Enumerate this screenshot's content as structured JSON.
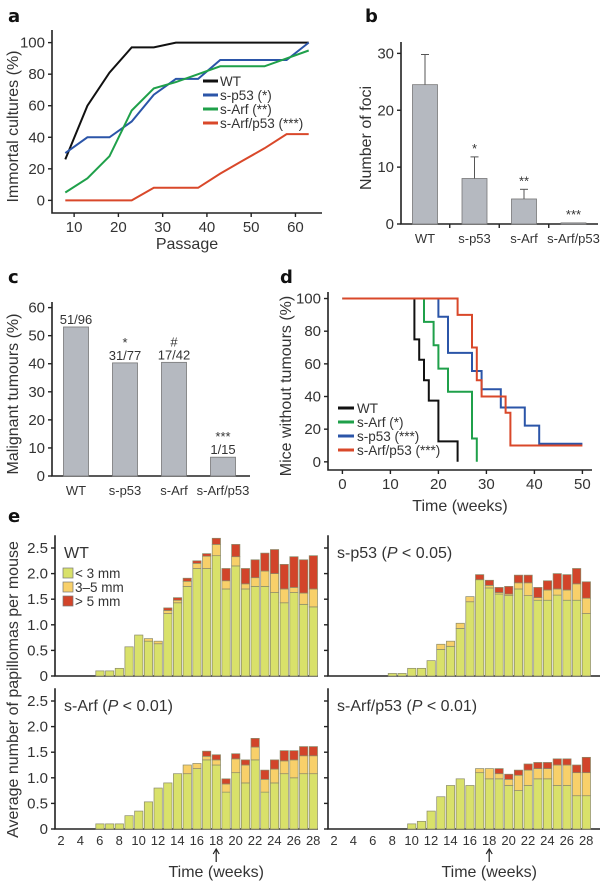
{
  "figure": {
    "panel_letters": [
      "a",
      "b",
      "c",
      "d",
      "e"
    ]
  },
  "chart_data": [
    {
      "id": "a",
      "type": "line",
      "xlabel": "Passage",
      "ylabel": "Immortal cultures (%)",
      "xlim": [
        5,
        66
      ],
      "ylim": [
        -8,
        108
      ],
      "xticks": [
        10,
        20,
        30,
        40,
        50,
        60
      ],
      "yticks": [
        0,
        20,
        40,
        60,
        80,
        100
      ],
      "legend_position": "center-right",
      "series": [
        {
          "name": "WT",
          "color": "#111111",
          "x": [
            8,
            13,
            18,
            23,
            28,
            33,
            38,
            43,
            48,
            53,
            58,
            63
          ],
          "y": [
            26,
            60,
            81,
            97,
            97,
            100,
            100,
            100,
            100,
            100,
            100,
            100
          ]
        },
        {
          "name": "s-p53 (*)",
          "color": "#2b55a8",
          "x": [
            8,
            13,
            18,
            23,
            28,
            33,
            38,
            43,
            48,
            53,
            58,
            63
          ],
          "y": [
            30,
            40,
            40,
            50,
            67,
            77,
            77,
            89,
            89,
            89,
            89,
            100
          ]
        },
        {
          "name": "s-Arf (**)",
          "color": "#1fa04a",
          "x": [
            8,
            13,
            18,
            23,
            28,
            33,
            38,
            43,
            48,
            53,
            58,
            63
          ],
          "y": [
            5,
            14,
            28,
            57,
            71,
            75,
            80,
            85,
            85,
            85,
            90,
            95
          ]
        },
        {
          "name": "s-Arf/p53 (***)",
          "color": "#d9482a",
          "x": [
            8,
            13,
            18,
            23,
            28,
            33,
            38,
            43,
            48,
            53,
            58,
            63
          ],
          "y": [
            0,
            0,
            0,
            0,
            8,
            8,
            8,
            17,
            25,
            33,
            42,
            42
          ]
        }
      ]
    },
    {
      "id": "b",
      "type": "bar",
      "ylabel": "Number of foci",
      "categories": [
        "WT",
        "s-p53",
        "s-Arf",
        "s-Arf/p53"
      ],
      "values": [
        24.5,
        8.0,
        4.4,
        0.2
      ],
      "errors": [
        5.3,
        3.8,
        1.7,
        0.1
      ],
      "annotations": [
        "",
        "*",
        "**",
        "***"
      ],
      "ylim": [
        0,
        32
      ],
      "yticks": [
        0,
        10,
        20,
        30
      ],
      "bar_color": "#b5b9c0"
    },
    {
      "id": "c",
      "type": "bar",
      "ylabel": "Malignant tumours (%)",
      "categories": [
        "WT",
        "s-p53",
        "s-Arf",
        "s-Arf/p53"
      ],
      "values": [
        53.1,
        40.3,
        40.5,
        6.7
      ],
      "labels": [
        "51/96",
        "31/77",
        "17/42",
        "1/15"
      ],
      "annotations": [
        "",
        "*",
        "#",
        "***"
      ],
      "ylim": [
        0,
        62
      ],
      "yticks": [
        0,
        10,
        20,
        30,
        40,
        50,
        60
      ],
      "bar_color": "#b5b9c0"
    },
    {
      "id": "d",
      "type": "line",
      "subtype": "kaplan-meier",
      "xlabel": "Time (weeks)",
      "ylabel": "Mice without tumours (%)",
      "xlim": [
        -3,
        52
      ],
      "ylim": [
        -5,
        104
      ],
      "xticks": [
        0,
        10,
        20,
        30,
        40,
        50
      ],
      "yticks": [
        0,
        20,
        40,
        60,
        80,
        100
      ],
      "legend_position": "bottom-left",
      "series": [
        {
          "name": "WT",
          "color": "#111111",
          "x": [
            0,
            15,
            16,
            17,
            18,
            20,
            24
          ],
          "y": [
            100,
            75,
            62.5,
            50,
            37.5,
            12.5,
            0
          ]
        },
        {
          "name": "s-Arf (*)",
          "color": "#1fa04a",
          "x": [
            0,
            17,
            19,
            20,
            22,
            27,
            28
          ],
          "y": [
            100,
            85.7,
            71.4,
            57.1,
            42.9,
            14.3,
            0
          ]
        },
        {
          "name": "s-p53 (***)",
          "color": "#2b55a8",
          "x": [
            0,
            20,
            22,
            27,
            29,
            33,
            38,
            41,
            50
          ],
          "y": [
            100,
            88.9,
            66.7,
            55.6,
            44.4,
            33.3,
            22.2,
            11.1,
            11.1
          ]
        },
        {
          "name": "s-Arf/p53 (***)",
          "color": "#d9482a",
          "x": [
            0,
            24,
            27,
            28,
            29,
            34,
            35,
            50
          ],
          "y": [
            100,
            90,
            70,
            50,
            40,
            30,
            10,
            10
          ]
        }
      ]
    },
    {
      "id": "e",
      "type": "bar",
      "subtype": "stacked",
      "xlabel": "Time (weeks)",
      "ylabel": "Average number of papillomas per mouse",
      "ylim": [
        0,
        2.75
      ],
      "yticks": [
        "0",
        "0.5",
        "1.0",
        "1.5",
        "2.0",
        "2.5"
      ],
      "xticks": [
        2,
        4,
        6,
        8,
        10,
        12,
        14,
        16,
        18,
        20,
        22,
        24,
        26,
        28
      ],
      "arrow_week": 18,
      "stack_names": [
        "< 3 mm",
        "3–5 mm",
        "> 5 mm"
      ],
      "stack_colors": [
        "#d9e16a",
        "#f8d06a",
        "#d2442a"
      ],
      "weeks": [
        6,
        7,
        8,
        9,
        10,
        11,
        12,
        13,
        14,
        15,
        16,
        17,
        18,
        19,
        20,
        21,
        22,
        23,
        24,
        25,
        26,
        27,
        28
      ],
      "subplots": [
        {
          "title": "WT",
          "title_p": "",
          "small": [
            0.1,
            0.1,
            0.15,
            0.57,
            0.8,
            0.68,
            0.63,
            1.22,
            1.43,
            1.75,
            2.1,
            2.1,
            2.35,
            1.7,
            2.15,
            1.7,
            1.75,
            1.75,
            1.63,
            1.43,
            1.63,
            1.4,
            1.35
          ],
          "medium": [
            0,
            0,
            0,
            0,
            0,
            0.05,
            0.05,
            0.06,
            0.05,
            0.1,
            0.1,
            0.24,
            0.22,
            0.16,
            0.18,
            0.1,
            0.17,
            0.3,
            0.37,
            0.27,
            0.1,
            0.22,
            0.35
          ],
          "large": [
            0,
            0,
            0,
            0,
            0,
            0,
            0,
            0.05,
            0.05,
            0.06,
            0.05,
            0.05,
            0.12,
            0.24,
            0.24,
            0.3,
            0.35,
            0.35,
            0.47,
            0.48,
            0.6,
            0.65,
            0.65
          ]
        },
        {
          "title": "s-p53",
          "title_p": "0.05",
          "small": [
            0,
            0,
            0,
            0,
            0.05,
            0.05,
            0.15,
            0.15,
            0.3,
            0.52,
            0.58,
            0.93,
            1.45,
            1.88,
            1.72,
            1.6,
            1.57,
            1.7,
            1.57,
            1.48,
            1.48,
            1.58,
            1.48,
            1.48,
            1.22
          ],
          "medium": [
            0,
            0,
            0,
            0,
            0,
            0,
            0,
            0,
            0,
            0.1,
            0.1,
            0.1,
            0.1,
            0,
            0.05,
            0.03,
            0.03,
            0.12,
            0.25,
            0.05,
            0.2,
            0.12,
            0.2,
            0.32,
            0.3
          ],
          "large": [
            0,
            0,
            0,
            0,
            0,
            0,
            0,
            0,
            0,
            0,
            0,
            0,
            0,
            0.1,
            0.1,
            0.1,
            0.15,
            0.15,
            0.15,
            0.2,
            0.18,
            0.3,
            0.3,
            0.3,
            0.32
          ],
          "weeks": [
            4,
            5,
            6,
            7,
            8,
            9,
            10,
            11,
            12,
            13,
            14,
            15,
            16,
            17,
            18,
            19,
            20,
            21,
            22,
            23,
            24,
            25,
            26,
            27,
            28
          ]
        },
        {
          "title": "s-Arf",
          "title_p": "0.01",
          "small": [
            0.1,
            0.1,
            0.1,
            0.26,
            0.35,
            0.53,
            0.8,
            0.9,
            1.08,
            1.08,
            1.18,
            1.35,
            1.25,
            0.72,
            1.1,
            0.9,
            1.35,
            0.72,
            0.9,
            1.08,
            1.0,
            1.08,
            1.08
          ],
          "medium": [
            0,
            0,
            0,
            0,
            0,
            0,
            0,
            0,
            0,
            0.17,
            0.1,
            0.07,
            0.1,
            0.16,
            0.27,
            0.35,
            0.25,
            0.25,
            0.27,
            0.25,
            0.35,
            0.35,
            0.35
          ],
          "large": [
            0,
            0,
            0,
            0,
            0,
            0,
            0,
            0,
            0,
            0,
            0,
            0.1,
            0.1,
            0.1,
            0.1,
            0.1,
            0.17,
            0.18,
            0.18,
            0.2,
            0.18,
            0.18,
            0.18
          ]
        },
        {
          "title": "s-Arf/p53",
          "title_p": "0.01",
          "small": [
            0.1,
            0.15,
            0.35,
            0.63,
            0.85,
            0.98,
            0.85,
            1.1,
            0.98,
            0.98,
            0.85,
            0.75,
            0.85,
            0.98,
            0.98,
            0.85,
            0.85,
            0.65,
            0.65
          ],
          "medium": [
            0,
            0,
            0,
            0,
            0,
            0,
            0,
            0.08,
            0.2,
            0.1,
            0.12,
            0.3,
            0.3,
            0.2,
            0.2,
            0.4,
            0.4,
            0.45,
            0.45
          ],
          "large": [
            0,
            0,
            0,
            0,
            0,
            0,
            0,
            0,
            0,
            0.1,
            0.1,
            0.1,
            0.12,
            0.12,
            0.12,
            0.12,
            0.12,
            0.15,
            0.3
          ],
          "weeks": [
            10,
            11,
            12,
            13,
            14,
            15,
            16,
            17,
            18,
            19,
            20,
            21,
            22,
            23,
            24,
            25,
            26,
            27,
            28
          ]
        }
      ]
    }
  ]
}
